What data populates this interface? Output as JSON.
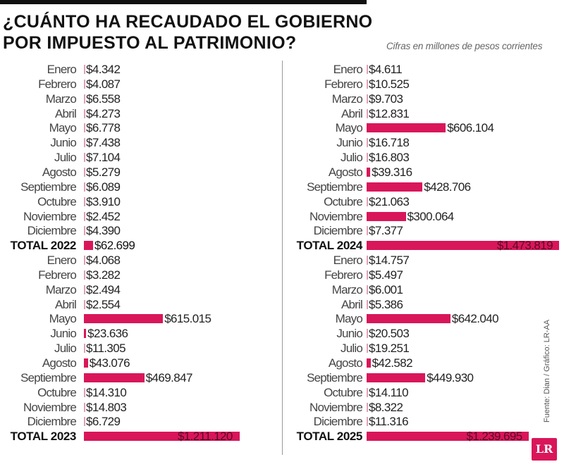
{
  "header": {
    "title_line1": "¿CUÁNTO HA RECAUDADO EL GOBIERNO",
    "title_line2": "POR IMPUESTO AL PATRIMONIO?",
    "subtitle": "Cifras en millones de pesos corrientes"
  },
  "source": "Fuente: Dian / Gráfico: LR-AA",
  "logo": "LR",
  "colors": {
    "bar": "#d9165a",
    "text": "#222222",
    "title": "#111111"
  },
  "chart_data": [
    {
      "type": "bar",
      "orientation": "horizontal",
      "year": "2022",
      "categories": [
        "Enero",
        "Febrero",
        "Marzo",
        "Abril",
        "Mayo",
        "Junio",
        "Julio",
        "Agosto",
        "Septiembre",
        "Octubre",
        "Noviembre",
        "Diciembre"
      ],
      "values": [
        4342,
        4087,
        6558,
        4273,
        6778,
        7438,
        7104,
        5279,
        6089,
        3910,
        2452,
        4390
      ],
      "value_labels": [
        "$4.342",
        "$4.087",
        "$6.558",
        "$4.273",
        "$6.778",
        "$7.438",
        "$7.104",
        "$5.279",
        "$6.089",
        "$3.910",
        "$2.452",
        "$4.390"
      ],
      "total_label": "TOTAL 2022",
      "total_value": 62699,
      "total_value_label": "$62.699"
    },
    {
      "type": "bar",
      "orientation": "horizontal",
      "year": "2023",
      "categories": [
        "Enero",
        "Febrero",
        "Marzo",
        "Abril",
        "Mayo",
        "Junio",
        "Julio",
        "Agosto",
        "Septiembre",
        "Octubre",
        "Noviembre",
        "Diciembre"
      ],
      "values": [
        4068,
        3282,
        2494,
        2554,
        615015,
        23636,
        11305,
        43076,
        469847,
        14310,
        14803,
        6729
      ],
      "value_labels": [
        "$4.068",
        "$3.282",
        "$2.494",
        "$2.554",
        "$615.015",
        "$23.636",
        "$11.305",
        "$43.076",
        "$469.847",
        "$14.310",
        "$14.803",
        "$6.729"
      ],
      "total_label": "TOTAL 2023",
      "total_value": 1211120,
      "total_value_label": "$1.211.120"
    },
    {
      "type": "bar",
      "orientation": "horizontal",
      "year": "2024",
      "categories": [
        "Enero",
        "Febrero",
        "Marzo",
        "Abril",
        "Mayo",
        "Junio",
        "Julio",
        "Agosto",
        "Septiembre",
        "Octubre",
        "Noviembre",
        "Diciembre"
      ],
      "values": [
        4611,
        10525,
        9703,
        12831,
        606104,
        16718,
        16803,
        39316,
        428706,
        21063,
        300064,
        7377
      ],
      "value_labels": [
        "$4.611",
        "$10.525",
        "$9.703",
        "$12.831",
        "$606.104",
        "$16.718",
        "$16.803",
        "$39.316",
        "$428.706",
        "$21.063",
        "$300.064",
        "$7.377"
      ],
      "total_label": "TOTAL 2024",
      "total_value": 1473819,
      "total_value_label": "$1.473.819"
    },
    {
      "type": "bar",
      "orientation": "horizontal",
      "year": "2025",
      "categories": [
        "Enero",
        "Febrero",
        "Marzo",
        "Abril",
        "Mayo",
        "Junio",
        "Julio",
        "Agosto",
        "Septiembre",
        "Octubre",
        "Noviembre",
        "Diciembre"
      ],
      "values": [
        14757,
        5497,
        6001,
        5386,
        642040,
        20503,
        19251,
        42582,
        449930,
        14110,
        8322,
        11316
      ],
      "value_labels": [
        "$14.757",
        "$5.497",
        "$6.001",
        "$5.386",
        "$642.040",
        "$20.503",
        "$19.251",
        "$42.582",
        "$449.930",
        "$14.110",
        "$8.322",
        "$11.316"
      ],
      "total_label": "TOTAL 2025",
      "total_value": 1239695,
      "total_value_label": "$1.239.695"
    }
  ]
}
